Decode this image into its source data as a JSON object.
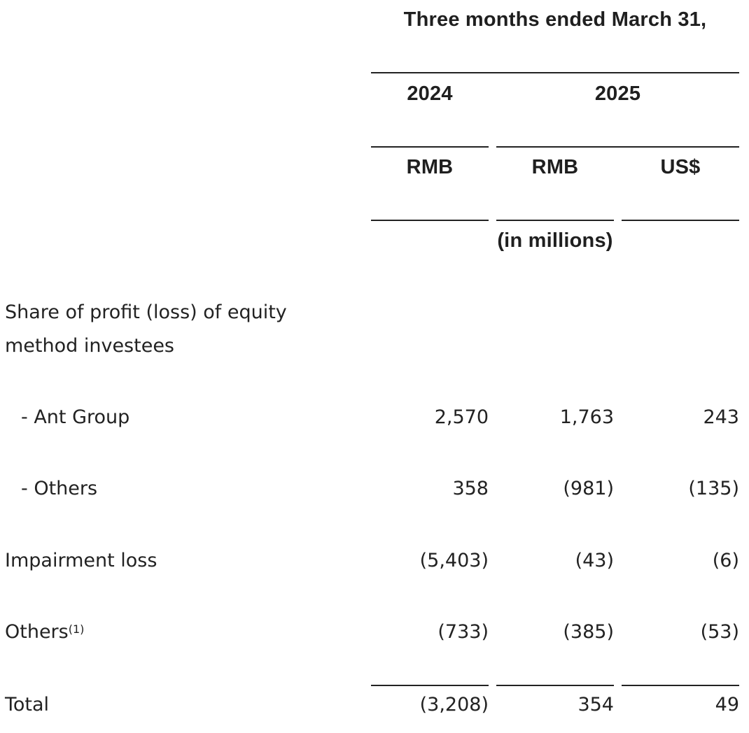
{
  "header": {
    "period": "Three months ended March 31,",
    "year_2024": "2024",
    "year_2025": "2025",
    "currency_2024_rmb": "RMB",
    "currency_2025_rmb": "RMB",
    "currency_2025_usd": "US$",
    "unit": "(in millions)"
  },
  "rows": {
    "share_heading": "Share of profit (loss) of equity method investees",
    "ant_group": {
      "label": "- Ant Group",
      "rmb_2024": "2,570",
      "rmb_2025": "1,763",
      "usd_2025": "243"
    },
    "others_sub": {
      "label": "- Others",
      "rmb_2024": "358",
      "rmb_2025": "(981)",
      "usd_2025": "(135)"
    },
    "impairment": {
      "label": "Impairment loss",
      "rmb_2024": "(5,403)",
      "rmb_2025": "(43)",
      "usd_2025": "(6)"
    },
    "others": {
      "label": "Others",
      "footnote": "(1)",
      "rmb_2024": "(733)",
      "rmb_2025": "(385)",
      "usd_2025": "(53)"
    },
    "total": {
      "label": "Total",
      "rmb_2024": "(3,208)",
      "rmb_2025": "354",
      "usd_2025": "49"
    }
  }
}
